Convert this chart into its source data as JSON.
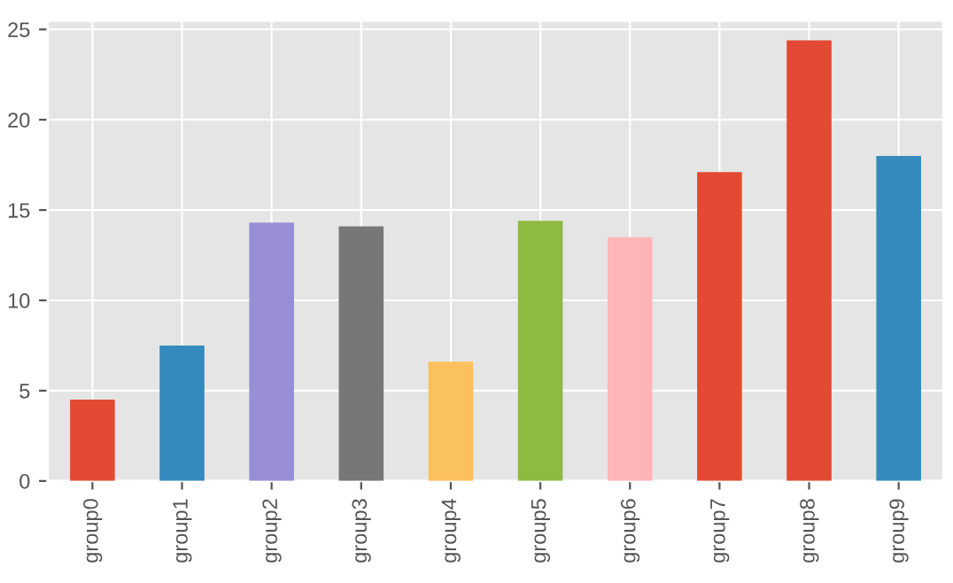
{
  "chart_data": {
    "type": "bar",
    "categories": [
      "group0",
      "group1",
      "group2",
      "group3",
      "group4",
      "group5",
      "group6",
      "group7",
      "group8",
      "group9"
    ],
    "values": [
      4.5,
      7.5,
      14.3,
      14.1,
      6.6,
      14.4,
      13.5,
      17.1,
      24.4,
      18.0
    ],
    "colors": [
      "#e24a33",
      "#348abd",
      "#988ed5",
      "#777777",
      "#fbc15e",
      "#8eba42",
      "#ffb5b8",
      "#e24a33",
      "#e24a33",
      "#348abd"
    ],
    "ylim": [
      0,
      25.5
    ],
    "yticks": [
      0,
      5,
      10,
      15,
      20,
      25
    ],
    "grid": true
  }
}
